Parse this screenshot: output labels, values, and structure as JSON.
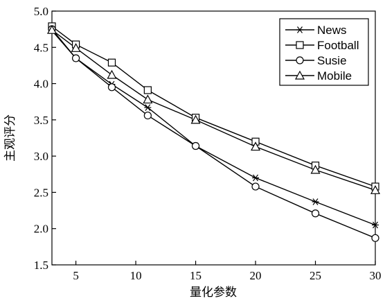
{
  "chart_data": {
    "type": "line",
    "title": "",
    "xlabel": "量化参数",
    "ylabel": "主观评分",
    "xlim": [
      3,
      30
    ],
    "ylim": [
      1.5,
      5.0
    ],
    "xticks": [
      5,
      10,
      15,
      20,
      25,
      30
    ],
    "xtick_labels": [
      "5",
      "10",
      "15",
      "20",
      "25",
      "30"
    ],
    "yticks": [
      1.5,
      2.0,
      2.5,
      3.0,
      3.5,
      4.0,
      4.5,
      5.0
    ],
    "ytick_labels": [
      "1.5",
      "2.0",
      "2.5",
      "3.0",
      "3.5",
      "4.0",
      "4.5",
      "5.0"
    ],
    "grid": false,
    "legend_position": "top-right",
    "colors": {
      "line": "#000000",
      "background": "#ffffff"
    },
    "series": [
      {
        "name": "News",
        "marker": "asterisk",
        "x": [
          3,
          5,
          8,
          11,
          15,
          20,
          25,
          30
        ],
        "y": [
          4.73,
          4.35,
          3.99,
          3.67,
          3.14,
          2.7,
          2.37,
          2.05
        ]
      },
      {
        "name": "Football",
        "marker": "square",
        "x": [
          3,
          5,
          8,
          11,
          15,
          20,
          25,
          30
        ],
        "y": [
          4.79,
          4.54,
          4.29,
          3.91,
          3.53,
          3.2,
          2.87,
          2.58
        ]
      },
      {
        "name": "Susie",
        "marker": "circle",
        "x": [
          3,
          5,
          8,
          11,
          15,
          20,
          25,
          30
        ],
        "y": [
          4.75,
          4.35,
          3.95,
          3.56,
          3.14,
          2.58,
          2.21,
          1.87
        ]
      },
      {
        "name": "Mobile",
        "marker": "triangle",
        "x": [
          3,
          5,
          8,
          11,
          15,
          20,
          25,
          30
        ],
        "y": [
          4.74,
          4.49,
          4.12,
          3.78,
          3.5,
          3.13,
          2.81,
          2.53
        ]
      }
    ]
  }
}
